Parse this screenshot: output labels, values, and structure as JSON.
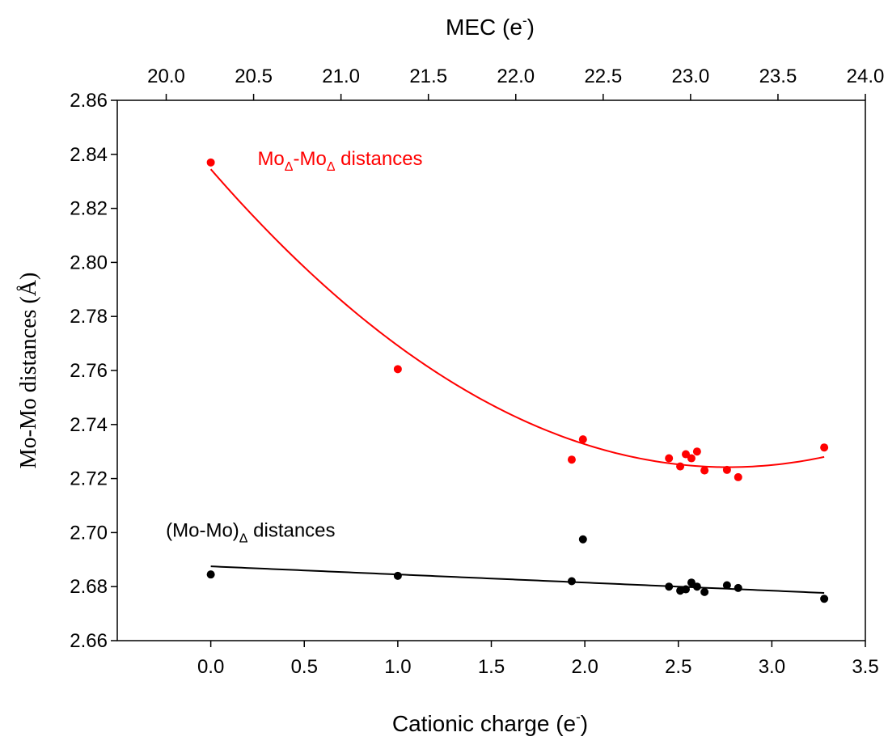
{
  "chart_data": {
    "type": "scatter",
    "x_axis": {
      "label_main": "Cationic charge (e",
      "label_sup": "-",
      "label_close": ")",
      "range": [
        -0.5,
        3.5
      ],
      "ticks": [
        "0.0",
        "0.5",
        "1.0",
        "1.5",
        "2.0",
        "2.5",
        "3.0",
        "3.5"
      ]
    },
    "x2_axis": {
      "label_main": "MEC (e",
      "label_sup": "-",
      "label_close": ")",
      "range": [
        19.72,
        24.0
      ],
      "ticks": [
        "20.0",
        "20.5",
        "21.0",
        "21.5",
        "22.0",
        "22.5",
        "23.0",
        "23.5",
        "24.0"
      ]
    },
    "y_axis": {
      "label": "Mo-Mo distances (Å)",
      "range": [
        2.66,
        2.86
      ],
      "ticks": [
        "2.66",
        "2.68",
        "2.70",
        "2.72",
        "2.74",
        "2.76",
        "2.78",
        "2.80",
        "2.82",
        "2.84",
        "2.86"
      ]
    },
    "grid": false,
    "series": [
      {
        "color": "#ff0000",
        "points": [
          [
            0.0,
            2.837
          ],
          [
            1.0,
            2.7605
          ],
          [
            1.93,
            2.727
          ],
          [
            1.99,
            2.7345
          ],
          [
            2.45,
            2.7275
          ],
          [
            2.51,
            2.7245
          ],
          [
            2.54,
            2.729
          ],
          [
            2.57,
            2.7275
          ],
          [
            2.6,
            2.73
          ],
          [
            2.64,
            2.723
          ],
          [
            2.76,
            2.7232
          ],
          [
            2.82,
            2.7205
          ],
          [
            3.28,
            2.7315
          ]
        ],
        "fit": {
          "kind": "quadratic",
          "coeffs": [
            2.8345,
            -0.0797,
            0.0144
          ],
          "x_range": [
            0.0,
            3.28
          ]
        }
      },
      {
        "color": "#000000",
        "points": [
          [
            0.0,
            2.6845
          ],
          [
            1.0,
            2.684
          ],
          [
            1.93,
            2.682
          ],
          [
            1.99,
            2.6975
          ],
          [
            2.45,
            2.68
          ],
          [
            2.51,
            2.6785
          ],
          [
            2.54,
            2.679
          ],
          [
            2.57,
            2.6815
          ],
          [
            2.6,
            2.68
          ],
          [
            2.64,
            2.678
          ],
          [
            2.76,
            2.6805
          ],
          [
            2.82,
            2.6795
          ],
          [
            3.28,
            2.6755
          ]
        ],
        "fit": {
          "kind": "linear",
          "coeffs": [
            2.6875,
            -0.003
          ],
          "x_range": [
            0.0,
            3.28
          ]
        }
      }
    ],
    "annotations": [
      {
        "base1": "Mo",
        "sub1": "Δ",
        "mid": "-Mo",
        "sub2": "Δ",
        "tail": " distances",
        "color": "#ff0000",
        "x": 0.25,
        "y": 2.836
      },
      {
        "base1": "(Mo-Mo)",
        "sub1": "Δ",
        "mid": "",
        "sub2": "",
        "tail": " distances",
        "color": "#000000",
        "x": -0.24,
        "y": 2.6985
      }
    ]
  }
}
